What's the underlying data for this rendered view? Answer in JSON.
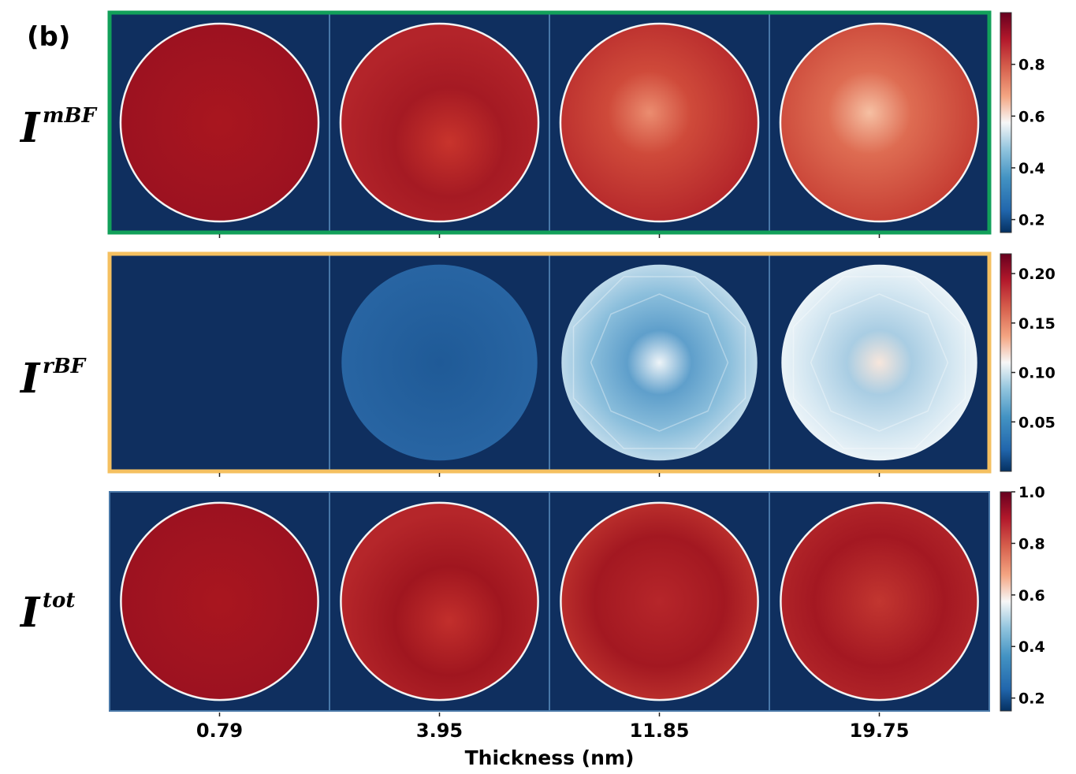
{
  "panel_label": "(b)",
  "chart_data": {
    "type": "heatmap",
    "xlabel": "Thickness (nm)",
    "x": [
      "0.79",
      "3.95",
      "11.85",
      "19.75"
    ],
    "colormap": "RdBu_r",
    "colors": {
      "background": "#0f2f5f",
      "divider": "#5c8fc0",
      "frame_row1": "#12a05a",
      "frame_row2": "#f5c060",
      "frame_row3": "#4a78a8"
    },
    "rows": [
      {
        "label": "I",
        "label_sup": "mBF",
        "colorbar": {
          "range": [
            0.15,
            1.0
          ],
          "ticks": [
            "0.8",
            "0.6",
            "0.4",
            "0.2"
          ]
        },
        "cells": [
          {
            "thickness": "0.79",
            "disk_mean": 0.97,
            "disk_rim": "white"
          },
          {
            "thickness": "3.95",
            "disk_mean": 0.93,
            "disk_rim": "white"
          },
          {
            "thickness": "11.85",
            "disk_mean": 0.88,
            "disk_rim": "white"
          },
          {
            "thickness": "19.75",
            "disk_mean": 0.82,
            "disk_rim": "white"
          }
        ]
      },
      {
        "label": "I",
        "label_sup": "rBF",
        "colorbar": {
          "range": [
            0.0,
            0.22
          ],
          "ticks": [
            "0.20",
            "0.15",
            "0.10",
            "0.05"
          ]
        },
        "cells": [
          {
            "thickness": "0.79",
            "disk_mean": 0.0,
            "disk_rim": "none"
          },
          {
            "thickness": "3.95",
            "disk_mean": 0.03,
            "disk_rim": "none"
          },
          {
            "thickness": "11.85",
            "disk_mean": 0.09,
            "disk_rim": "none"
          },
          {
            "thickness": "19.75",
            "disk_mean": 0.12,
            "disk_rim": "none"
          }
        ]
      },
      {
        "label": "I",
        "label_sup": "tot",
        "colorbar": {
          "range": [
            0.15,
            1.0
          ],
          "ticks": [
            "1.0",
            "0.8",
            "0.6",
            "0.4",
            "0.2"
          ]
        },
        "cells": [
          {
            "thickness": "0.79",
            "disk_mean": 0.97,
            "disk_rim": "white"
          },
          {
            "thickness": "3.95",
            "disk_mean": 0.94,
            "disk_rim": "white"
          },
          {
            "thickness": "11.85",
            "disk_mean": 0.93,
            "disk_rim": "white"
          },
          {
            "thickness": "19.75",
            "disk_mean": 0.94,
            "disk_rim": "white"
          }
        ]
      }
    ]
  }
}
